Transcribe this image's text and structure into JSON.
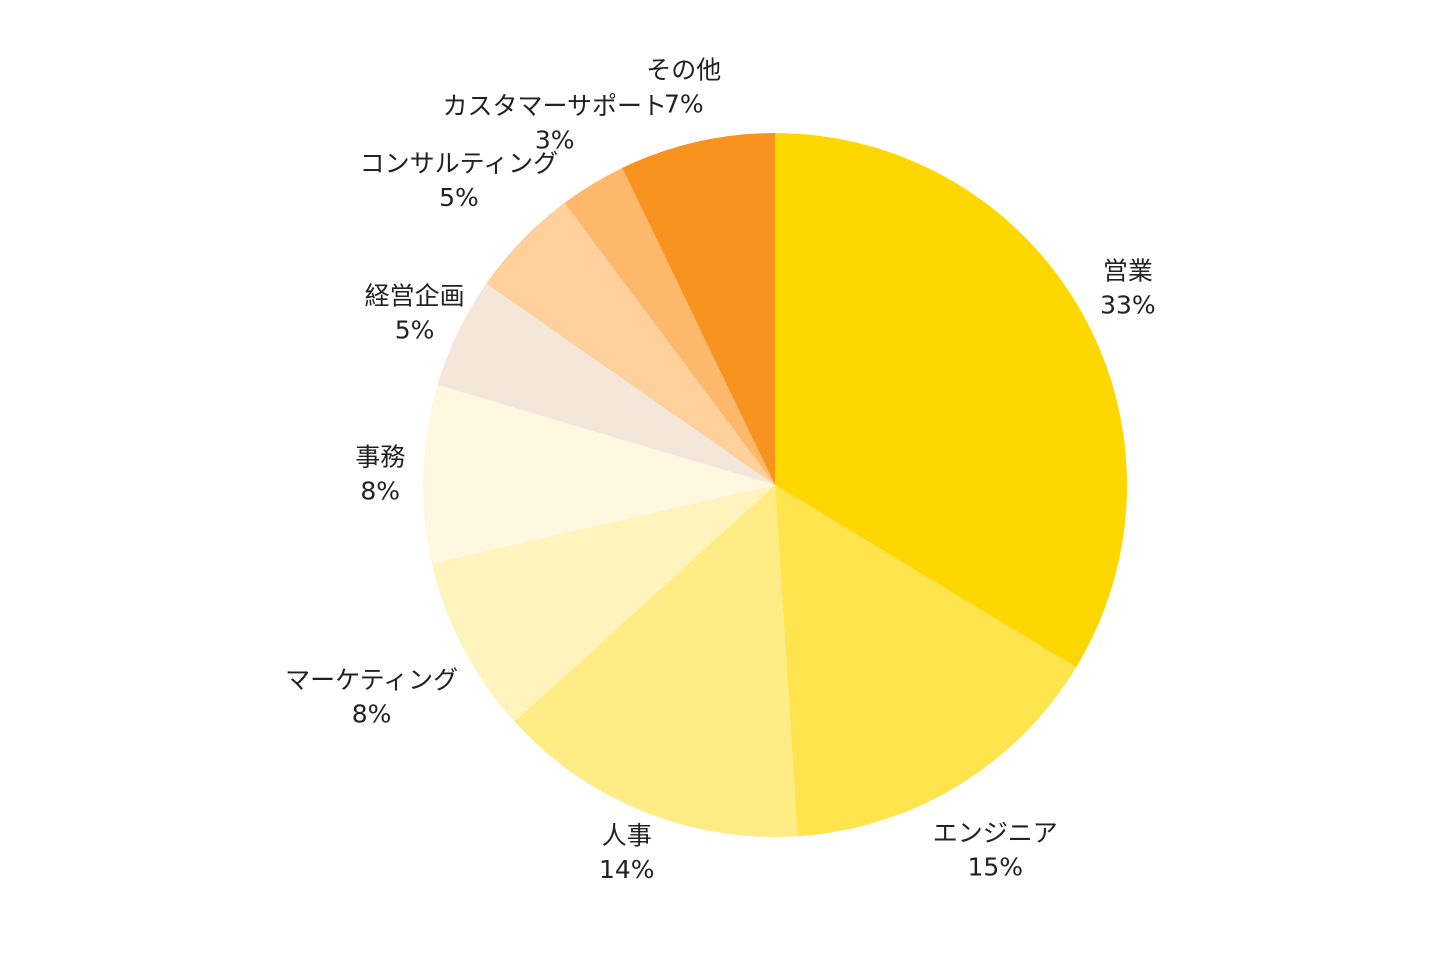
{
  "chart_data": {
    "type": "pie",
    "title": "",
    "start": "12 o'clock",
    "direction": "clockwise",
    "slices": [
      {
        "label": "営業",
        "percent_label": "33%",
        "value": 33,
        "color": "#FFD700"
      },
      {
        "label": "エンジニア",
        "percent_label": "15%",
        "value": 15,
        "color": "#FFE44D"
      },
      {
        "label": "人事",
        "percent_label": "14%",
        "value": 14,
        "color": "#FFEC85"
      },
      {
        "label": "マーケティング",
        "percent_label": "8%",
        "value": 8,
        "color": "#FFF4BD"
      },
      {
        "label": "事務",
        "percent_label": "8%",
        "value": 8,
        "color": "#FFF8E1"
      },
      {
        "label": "経営企画",
        "percent_label": "5%",
        "value": 5,
        "color": "#F4E6D8"
      },
      {
        "label": "コンサルティング",
        "percent_label": "5%",
        "value": 5,
        "color": "#FDD09C"
      },
      {
        "label": "カスタマーサポート",
        "percent_label": "3%",
        "value": 3,
        "color": "#FDB86B"
      },
      {
        "label": "その他",
        "percent_label": "7%",
        "value": 7,
        "color": "#F7931E"
      }
    ]
  }
}
